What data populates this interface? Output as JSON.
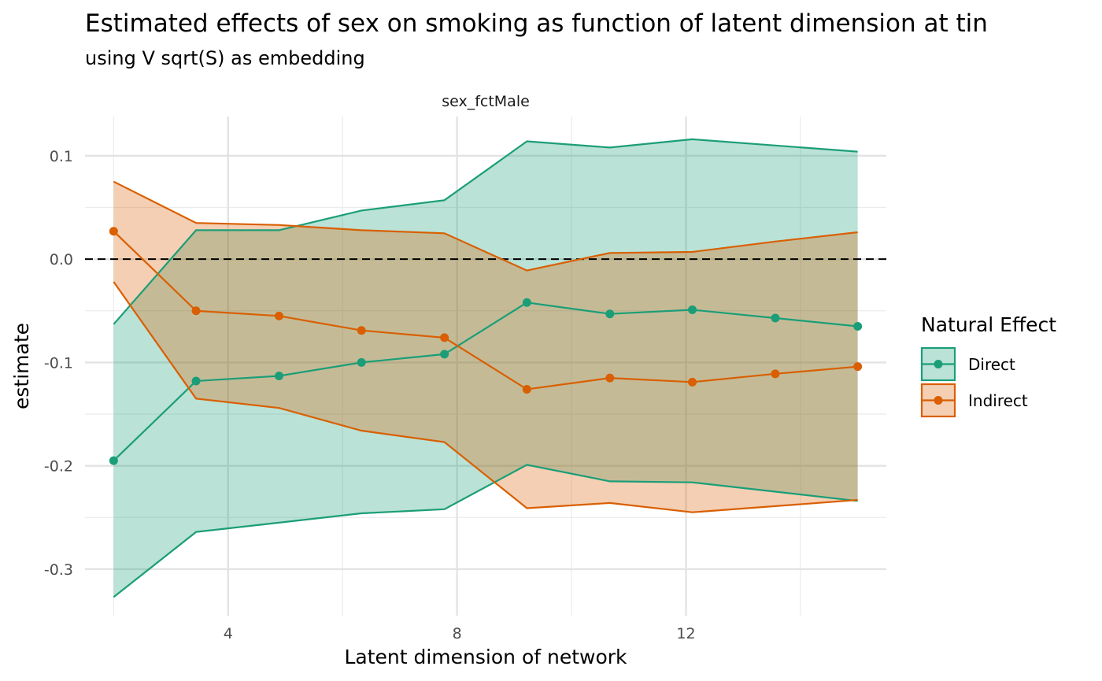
{
  "chart_data": {
    "type": "line",
    "title": "Estimated effects of sex on smoking as function of latent dimension at tin",
    "subtitle": "using V sqrt(S) as embedding",
    "facet_label": "sex_fctMale",
    "xlabel": "Latent dimension of network",
    "ylabel": "estimate",
    "xlim": [
      1.5,
      15.5
    ],
    "ylim": [
      -0.345,
      0.138
    ],
    "x_ticks": [
      4,
      8,
      12
    ],
    "x_minor": [
      2,
      6,
      10,
      14
    ],
    "y_ticks": [
      -0.3,
      -0.2,
      -0.1,
      0.0,
      0.1
    ],
    "y_tick_labels": [
      "-0.3",
      "-0.2",
      "-0.1",
      "0.0",
      "0.1"
    ],
    "y_minor": [
      -0.25,
      -0.15,
      -0.05,
      0.05
    ],
    "hline": 0,
    "grid": true,
    "legend": {
      "title": "Natural Effect",
      "position": "right"
    },
    "x": [
      2,
      3.44,
      4.89,
      6.33,
      7.78,
      9.22,
      10.67,
      12.11,
      13.56,
      15
    ],
    "series": [
      {
        "name": "Direct",
        "color": "#1b9e77",
        "fill": "#1b9e77",
        "values": [
          -0.195,
          -0.118,
          -0.113,
          -0.1,
          -0.092,
          -0.042,
          -0.053,
          -0.049,
          -0.057,
          -0.065
        ],
        "lower": [
          -0.327,
          -0.264,
          -0.255,
          -0.246,
          -0.242,
          -0.199,
          -0.215,
          -0.216,
          -0.225,
          -0.234
        ],
        "upper": [
          -0.063,
          0.028,
          0.028,
          0.047,
          0.057,
          0.114,
          0.108,
          0.116,
          0.11,
          0.104
        ]
      },
      {
        "name": "Indirect",
        "color": "#d95f02",
        "fill": "#d95f02",
        "values": [
          0.027,
          -0.05,
          -0.055,
          -0.069,
          -0.076,
          -0.126,
          -0.115,
          -0.119,
          -0.111,
          -0.104
        ],
        "lower": [
          -0.022,
          -0.135,
          -0.144,
          -0.166,
          -0.177,
          -0.241,
          -0.236,
          -0.245,
          -0.239,
          -0.233
        ],
        "upper": [
          0.075,
          0.035,
          0.033,
          0.028,
          0.025,
          -0.011,
          0.006,
          0.007,
          0.017,
          0.026
        ]
      }
    ]
  }
}
